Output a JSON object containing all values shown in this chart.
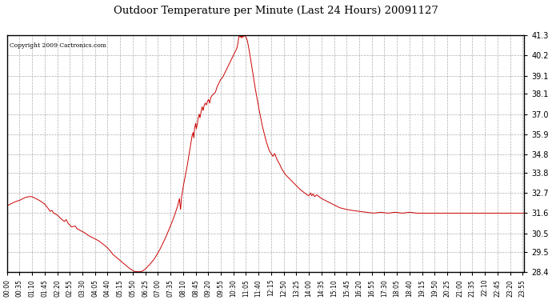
{
  "title": "Outdoor Temperature per Minute (Last 24 Hours) 20091127",
  "copyright": "Copyright 2009 Cartronics.com",
  "line_color": "#cc0000",
  "background_color": "#ffffff",
  "plot_bg_color": "#ffffff",
  "grid_color": "#999999",
  "ylim": [
    28.4,
    41.3
  ],
  "yticks": [
    28.4,
    29.5,
    30.5,
    31.6,
    32.7,
    33.8,
    34.8,
    35.9,
    37.0,
    38.1,
    39.1,
    40.2,
    41.3
  ],
  "xtick_labels": [
    "00:00",
    "00:35",
    "01:10",
    "01:45",
    "02:20",
    "02:55",
    "03:30",
    "04:05",
    "04:40",
    "05:15",
    "05:50",
    "06:25",
    "07:00",
    "07:35",
    "08:10",
    "08:45",
    "09:20",
    "09:55",
    "10:30",
    "11:05",
    "11:40",
    "12:15",
    "12:50",
    "13:25",
    "14:00",
    "14:35",
    "15:10",
    "15:45",
    "16:20",
    "16:55",
    "17:30",
    "18:05",
    "18:40",
    "19:15",
    "19:50",
    "20:25",
    "21:00",
    "21:35",
    "22:10",
    "22:45",
    "23:20",
    "23:55"
  ],
  "num_points": 1440,
  "key_points": {
    "0": 32.0,
    "20": 32.2,
    "35": 32.3,
    "50": 32.45,
    "60": 32.5,
    "70": 32.5,
    "90": 32.3,
    "105": 32.1,
    "115": 31.85,
    "120": 31.7,
    "125": 31.75,
    "130": 31.6,
    "140": 31.5,
    "150": 31.3,
    "160": 31.15,
    "165": 31.25,
    "170": 31.05,
    "175": 30.95,
    "180": 30.85,
    "190": 30.9,
    "195": 30.75,
    "205": 30.65,
    "215": 30.55,
    "225": 30.4,
    "235": 30.3,
    "245": 30.2,
    "255": 30.1,
    "265": 29.95,
    "275": 29.8,
    "285": 29.6,
    "295": 29.35,
    "310": 29.1,
    "325": 28.85,
    "340": 28.6,
    "355": 28.42,
    "365": 28.4,
    "375": 28.42,
    "385": 28.55,
    "395": 28.75,
    "410": 29.1,
    "425": 29.6,
    "440": 30.2,
    "455": 30.9,
    "465": 31.4,
    "475": 32.0,
    "480": 32.4,
    "483": 31.8,
    "486": 32.5,
    "490": 33.0,
    "495": 33.5,
    "500": 34.0,
    "505": 34.6,
    "510": 35.2,
    "515": 35.8,
    "518": 36.0,
    "520": 35.7,
    "522": 36.2,
    "525": 36.5,
    "527": 36.2,
    "530": 36.5,
    "532": 36.8,
    "535": 37.0,
    "537": 36.8,
    "540": 37.1,
    "543": 37.4,
    "546": 37.2,
    "549": 37.5,
    "552": 37.6,
    "555": 37.5,
    "558": 37.7,
    "561": 37.8,
    "564": 37.6,
    "567": 37.9,
    "570": 38.0,
    "575": 38.1,
    "580": 38.2,
    "585": 38.5,
    "590": 38.7,
    "595": 38.9,
    "600": 39.0,
    "605": 39.2,
    "610": 39.4,
    "615": 39.6,
    "620": 39.8,
    "625": 40.0,
    "630": 40.2,
    "635": 40.4,
    "640": 40.6,
    "643": 40.9,
    "645": 41.2,
    "647": 41.3,
    "649": 41.2,
    "651": 41.3,
    "653": 41.15,
    "655": 41.3,
    "657": 41.2,
    "659": 41.3,
    "661": 41.25,
    "663": 41.3,
    "665": 41.2,
    "667": 41.1,
    "669": 41.0,
    "673": 40.6,
    "677": 40.1,
    "683": 39.4,
    "690": 38.5,
    "700": 37.4,
    "710": 36.4,
    "720": 35.6,
    "730": 35.0,
    "740": 34.7,
    "745": 34.85,
    "748": 34.7,
    "752": 34.5,
    "758": 34.3,
    "765": 34.0,
    "775": 33.7,
    "785": 33.5,
    "795": 33.3,
    "805": 33.1,
    "815": 32.9,
    "825": 32.75,
    "835": 32.6,
    "840": 32.55,
    "845": 32.7,
    "848": 32.55,
    "852": 32.65,
    "856": 32.5,
    "862": 32.6,
    "868": 32.5,
    "875": 32.4,
    "885": 32.3,
    "895": 32.2,
    "905": 32.1,
    "915": 32.0,
    "925": 31.9,
    "935": 31.85,
    "945": 31.8,
    "960": 31.75,
    "980": 31.7,
    "1000": 31.65,
    "1020": 31.6,
    "1040": 31.65,
    "1060": 31.6,
    "1080": 31.65,
    "1100": 31.6,
    "1120": 31.65,
    "1140": 31.6,
    "1160": 31.6,
    "1180": 31.6,
    "1200": 31.6,
    "1220": 31.6,
    "1240": 31.6,
    "1260": 31.6,
    "1280": 31.6,
    "1300": 31.6,
    "1320": 31.6,
    "1340": 31.6,
    "1360": 31.6,
    "1380": 31.6,
    "1400": 31.6,
    "1420": 31.6,
    "1439": 31.6
  }
}
